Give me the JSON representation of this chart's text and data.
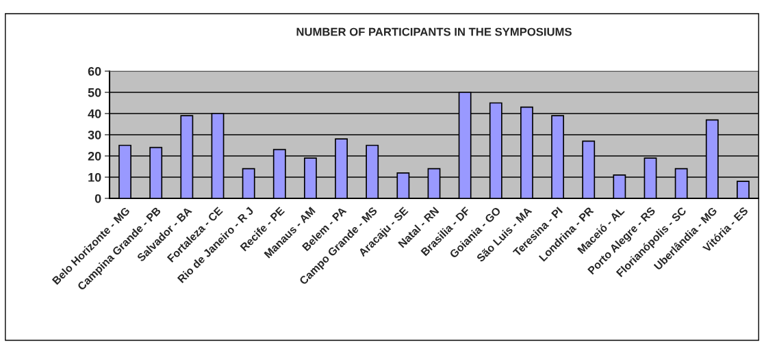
{
  "chart_data": {
    "type": "bar",
    "title": "NUMBER OF PARTICIPANTS IN THE SYMPOSIUMS",
    "categories": [
      "Belo Horizonte - MG",
      "Campina Grande - PB",
      "Salvador - BA",
      "Fortaleza - CE",
      "Rio de Janeiro - R J",
      "Recife - PE",
      "Manaus - AM",
      "Belem - PA",
      "Campo Grande - MS",
      "Aracaju - SE",
      "Natal - RN",
      "Brasilia - DF",
      "Goiania - GO",
      "São Luis - MA",
      "Teresina - PI",
      "Londrina - PR",
      "Maceió - AL",
      "Porto Alegre - RS",
      "Florianópolis - SC",
      "Uberlândia - MG",
      "Vitória - ES"
    ],
    "values": [
      25,
      24,
      39,
      40,
      14,
      23,
      19,
      28,
      25,
      12,
      14,
      50,
      45,
      43,
      39,
      27,
      11,
      19,
      14,
      37,
      8
    ],
    "color": "#9999ff",
    "ylim": [
      0,
      60
    ],
    "yticks": [
      0,
      10,
      20,
      30,
      40,
      50,
      60
    ],
    "grid": "y",
    "legend": false
  }
}
